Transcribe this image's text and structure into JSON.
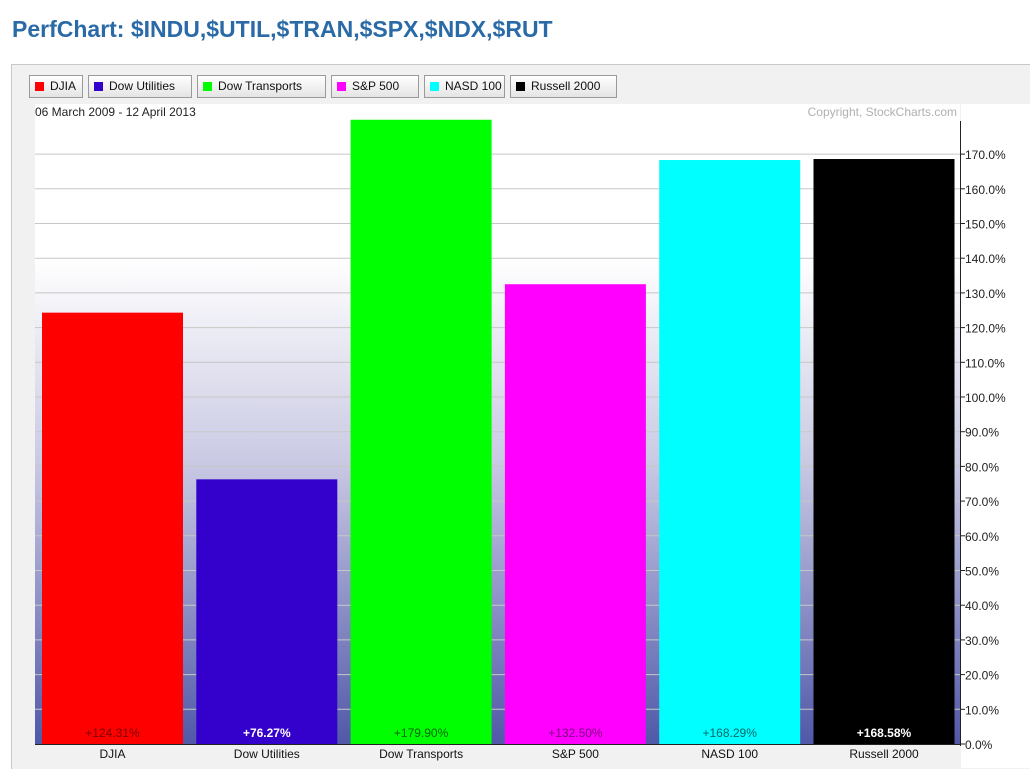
{
  "page": {
    "title": "PerfChart: $INDU,$UTIL,$TRAN,$SPX,$NDX,$RUT"
  },
  "legend": [
    {
      "label": "DJIA",
      "color": "#ff0000"
    },
    {
      "label": "Dow Utilities",
      "color": "#3300cc"
    },
    {
      "label": "Dow Transports",
      "color": "#00ff00"
    },
    {
      "label": "S&P 500",
      "color": "#ff00ff"
    },
    {
      "label": "NASD 100",
      "color": "#00ffff"
    },
    {
      "label": "Russell 2000",
      "color": "#000000"
    }
  ],
  "chart_data": {
    "type": "bar",
    "date_range": "06 March 2009 - 12 April 2013",
    "copyright": "Copyright, StockCharts.com",
    "categories": [
      "DJIA",
      "Dow Utilities",
      "Dow Transports",
      "S&P 500",
      "NASD 100",
      "Russell 2000"
    ],
    "values": [
      124.31,
      76.27,
      179.9,
      132.5,
      168.29,
      168.58
    ],
    "value_labels": [
      "+124.31%",
      "+76.27%",
      "+179.90%",
      "+132.50%",
      "+168.29%",
      "+168.58%"
    ],
    "colors": [
      "#ff0000",
      "#3300cc",
      "#00ff00",
      "#ff00ff",
      "#00ffff",
      "#000000"
    ],
    "value_label_colors": [
      "#7a0000",
      "#ffffff",
      "#006600",
      "#7a007a",
      "#006666",
      "#ffffff"
    ],
    "ylim": [
      0,
      180
    ],
    "yticks": [
      0,
      10,
      20,
      30,
      40,
      50,
      60,
      70,
      80,
      90,
      100,
      110,
      120,
      130,
      140,
      150,
      160,
      170
    ],
    "ytick_labels": [
      "0.0%",
      "10.0%",
      "20.0%",
      "30.0%",
      "40.0%",
      "50.0%",
      "60.0%",
      "70.0%",
      "80.0%",
      "90.0%",
      "100.0%",
      "110.0%",
      "120.0%",
      "130.0%",
      "140.0%",
      "150.0%",
      "160.0%",
      "170.0%"
    ],
    "y_axis_side": "right",
    "grid": true,
    "legend_position": "top-left"
  }
}
